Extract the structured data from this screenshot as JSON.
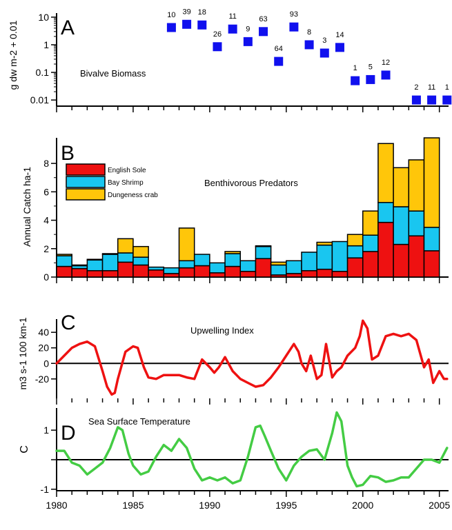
{
  "colors": {
    "biomass": "#1010ee",
    "sole": "#ee1111",
    "shrimp": "#19c6f0",
    "crab": "#ffc60a",
    "upwelling": "#ee1111",
    "sst": "#44cc44"
  },
  "chart_data": [
    {
      "panel": "A",
      "type": "scatter",
      "annotation": "Bivalve Biomass",
      "ylabel": "g dw m-2 + 0.01",
      "yscale": "log",
      "ylim": [
        0.006,
        14
      ],
      "yticks": [
        "10",
        "1",
        "0.1",
        "0.01"
      ],
      "xlim": [
        1980,
        2005.6
      ],
      "x": [
        1987.5,
        1988.5,
        1989.5,
        1990.5,
        1991.5,
        1992.5,
        1993.5,
        1994.5,
        1995.5,
        1996.5,
        1997.5,
        1998.5,
        1999.5,
        2000.5,
        2001.5,
        2003.5,
        2004.5,
        2005.5
      ],
      "y": [
        4.2,
        5.5,
        5.2,
        0.85,
        3.7,
        1.3,
        3.0,
        0.25,
        4.4,
        1.0,
        0.5,
        0.8,
        0.05,
        0.055,
        0.08,
        0.01,
        0.01,
        0.01
      ],
      "labels": [
        "10",
        "39",
        "18",
        "26",
        "11",
        "9",
        "63",
        "64",
        "93",
        "8",
        "3",
        "14",
        "1",
        "5",
        "12",
        "2",
        "11",
        "1"
      ]
    },
    {
      "panel": "B",
      "type": "bar",
      "stacked": true,
      "annotation": "Benthivorous Predators",
      "ylabel": "Annual Catch ha-1",
      "ylim": [
        0,
        9.8
      ],
      "yticks": [
        "0",
        "2",
        "4",
        "6",
        "8"
      ],
      "legend_position": "top-left",
      "categories": [
        1980,
        1981,
        1982,
        1983,
        1984,
        1985,
        1986,
        1987,
        1988,
        1989,
        1990,
        1991,
        1992,
        1993,
        1994,
        1995,
        1996,
        1997,
        1998,
        1999,
        2000,
        2001,
        2002,
        2003,
        2004
      ],
      "series": [
        {
          "name": "English Sole",
          "values": [
            0.75,
            0.6,
            0.45,
            0.45,
            1.05,
            0.85,
            0.5,
            0.25,
            0.65,
            0.8,
            0.3,
            0.75,
            0.4,
            1.3,
            0.15,
            0.25,
            0.45,
            0.55,
            0.4,
            1.35,
            1.8,
            3.85,
            2.3,
            2.9,
            1.85
          ]
        },
        {
          "name": "Bay Shrimp",
          "values": [
            0.75,
            0.2,
            0.75,
            1.15,
            0.65,
            0.55,
            0.2,
            0.4,
            0.5,
            0.8,
            0.7,
            0.9,
            0.75,
            0.85,
            0.7,
            0.9,
            1.3,
            1.7,
            2.1,
            0.85,
            1.15,
            1.4,
            2.65,
            1.75,
            1.65
          ]
        },
        {
          "name": "Dungeness crab",
          "values": [
            0.1,
            0.05,
            0.05,
            0.05,
            1.0,
            0.75,
            0.0,
            0.0,
            2.3,
            0.0,
            0.0,
            0.15,
            0.0,
            0.05,
            0.2,
            0.0,
            0.0,
            0.2,
            0.0,
            0.8,
            1.7,
            4.15,
            2.75,
            3.6,
            6.3
          ]
        }
      ]
    },
    {
      "panel": "C",
      "type": "line",
      "annotation": "Upwelling Index",
      "ylabel": "m3 s-1 100 km-1",
      "ylim": [
        -45,
        57
      ],
      "yticks": [
        "40",
        "20",
        "0",
        "-20"
      ],
      "zero_line": true,
      "x": [
        1980,
        1980.5,
        1981,
        1981.5,
        1982,
        1982.5,
        1983,
        1983.3,
        1983.6,
        1983.8,
        1984,
        1984.5,
        1985,
        1985.3,
        1985.7,
        1986,
        1986.5,
        1987,
        1987.5,
        1988,
        1988.5,
        1989,
        1989.5,
        1990,
        1990.3,
        1990.6,
        1991,
        1991.5,
        1992,
        1992.5,
        1993,
        1993.5,
        1994,
        1994.5,
        1995,
        1995.5,
        1995.8,
        1996,
        1996.3,
        1996.6,
        1997,
        1997.3,
        1997.6,
        1998,
        1998.3,
        1998.6,
        1999,
        1999.5,
        1999.8,
        2000,
        2000.3,
        2000.6,
        2001,
        2001.5,
        2002,
        2002.5,
        2003,
        2003.5,
        2004,
        2004.3,
        2004.6,
        2005,
        2005.3,
        2005.5
      ],
      "y": [
        0,
        10,
        20,
        25,
        28,
        22,
        -10,
        -30,
        -40,
        -38,
        -20,
        15,
        22,
        20,
        -5,
        -18,
        -20,
        -15,
        -15,
        -15,
        -18,
        -20,
        5,
        -5,
        -12,
        -5,
        8,
        -10,
        -20,
        -25,
        -30,
        -28,
        -18,
        -5,
        10,
        25,
        15,
        0,
        -10,
        10,
        -20,
        -15,
        25,
        -18,
        -10,
        -5,
        10,
        20,
        35,
        55,
        45,
        5,
        10,
        35,
        38,
        35,
        38,
        30,
        -5,
        5,
        -25,
        -10,
        -20,
        -20
      ]
    },
    {
      "panel": "D",
      "type": "line",
      "annotation": "Sea Surface Temperature",
      "ylabel": "C",
      "ylim": [
        -1.05,
        1.75
      ],
      "yticks": [
        "1",
        "-1"
      ],
      "zero_line": true,
      "xlabel": "",
      "xticks": [
        "1980",
        "1985",
        "1990",
        "1995",
        "2000",
        "2005"
      ],
      "x": [
        1980,
        1980.5,
        1981,
        1981.5,
        1982,
        1982.5,
        1983,
        1983.5,
        1984,
        1984.3,
        1984.7,
        1985,
        1985.5,
        1986,
        1986.5,
        1987,
        1987.5,
        1988,
        1988.5,
        1989,
        1989.5,
        1990,
        1990.5,
        1991,
        1991.5,
        1992,
        1992.5,
        1993,
        1993.3,
        1993.6,
        1994,
        1994.5,
        1995,
        1995.5,
        1996,
        1996.5,
        1997,
        1997.5,
        1998,
        1998.3,
        1998.6,
        1999,
        1999.3,
        1999.6,
        2000,
        2000.5,
        2001,
        2001.5,
        2002,
        2002.5,
        2003,
        2003.5,
        2004,
        2004.5,
        2005,
        2005.5
      ],
      "y": [
        0.3,
        0.3,
        -0.1,
        -0.2,
        -0.5,
        -0.3,
        -0.1,
        0.4,
        1.1,
        1.0,
        0.2,
        -0.2,
        -0.5,
        -0.4,
        0.1,
        0.5,
        0.3,
        0.7,
        0.4,
        -0.3,
        -0.7,
        -0.6,
        -0.7,
        -0.6,
        -0.8,
        -0.7,
        0.1,
        1.1,
        1.15,
        0.8,
        0.3,
        -0.3,
        -0.7,
        -0.2,
        0.1,
        0.3,
        0.35,
        0.0,
        0.9,
        1.6,
        1.3,
        -0.2,
        -0.6,
        -0.9,
        -0.85,
        -0.55,
        -0.6,
        -0.75,
        -0.7,
        -0.6,
        -0.6,
        -0.3,
        0.0,
        0.0,
        -0.1,
        0.4
      ]
    }
  ]
}
